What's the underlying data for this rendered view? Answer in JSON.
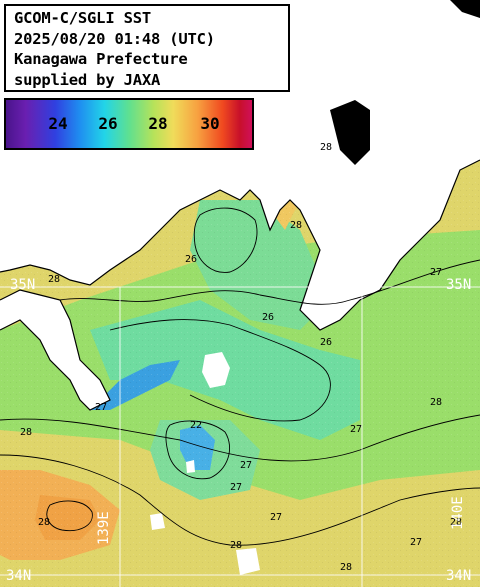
{
  "title": {
    "lines": [
      "GCOM-C/SGLI SST",
      "2025/08/20 01:48 (UTC)",
      "Kanagawa Prefecture",
      "supplied by JAXA"
    ]
  },
  "legend": {
    "ticks": [
      "24",
      "26",
      "28",
      "30"
    ]
  },
  "grid_labels": {
    "lat_35_left": "35N",
    "lat_35_right": "35N",
    "lat_34_left": "34N",
    "lat_34_right": "34N",
    "lon_139e": "139E",
    "lon_140e": "140E"
  },
  "contour_labels": [
    "28",
    "27",
    "26",
    "28",
    "27",
    "26",
    "28",
    "27",
    "26",
    "28",
    "27",
    "22",
    "27",
    "28",
    "28",
    "28",
    "27",
    "28",
    "27",
    "28"
  ],
  "colors": {
    "land": "#ffffff",
    "sst_26": "#3fd6c8",
    "sst_27": "#86e27c",
    "sst_28": "#dfd56a",
    "sst_29": "#f2a84e",
    "sst_cold": "#3aa0e0",
    "grid": "#ffffff",
    "contour": "#000000"
  }
}
